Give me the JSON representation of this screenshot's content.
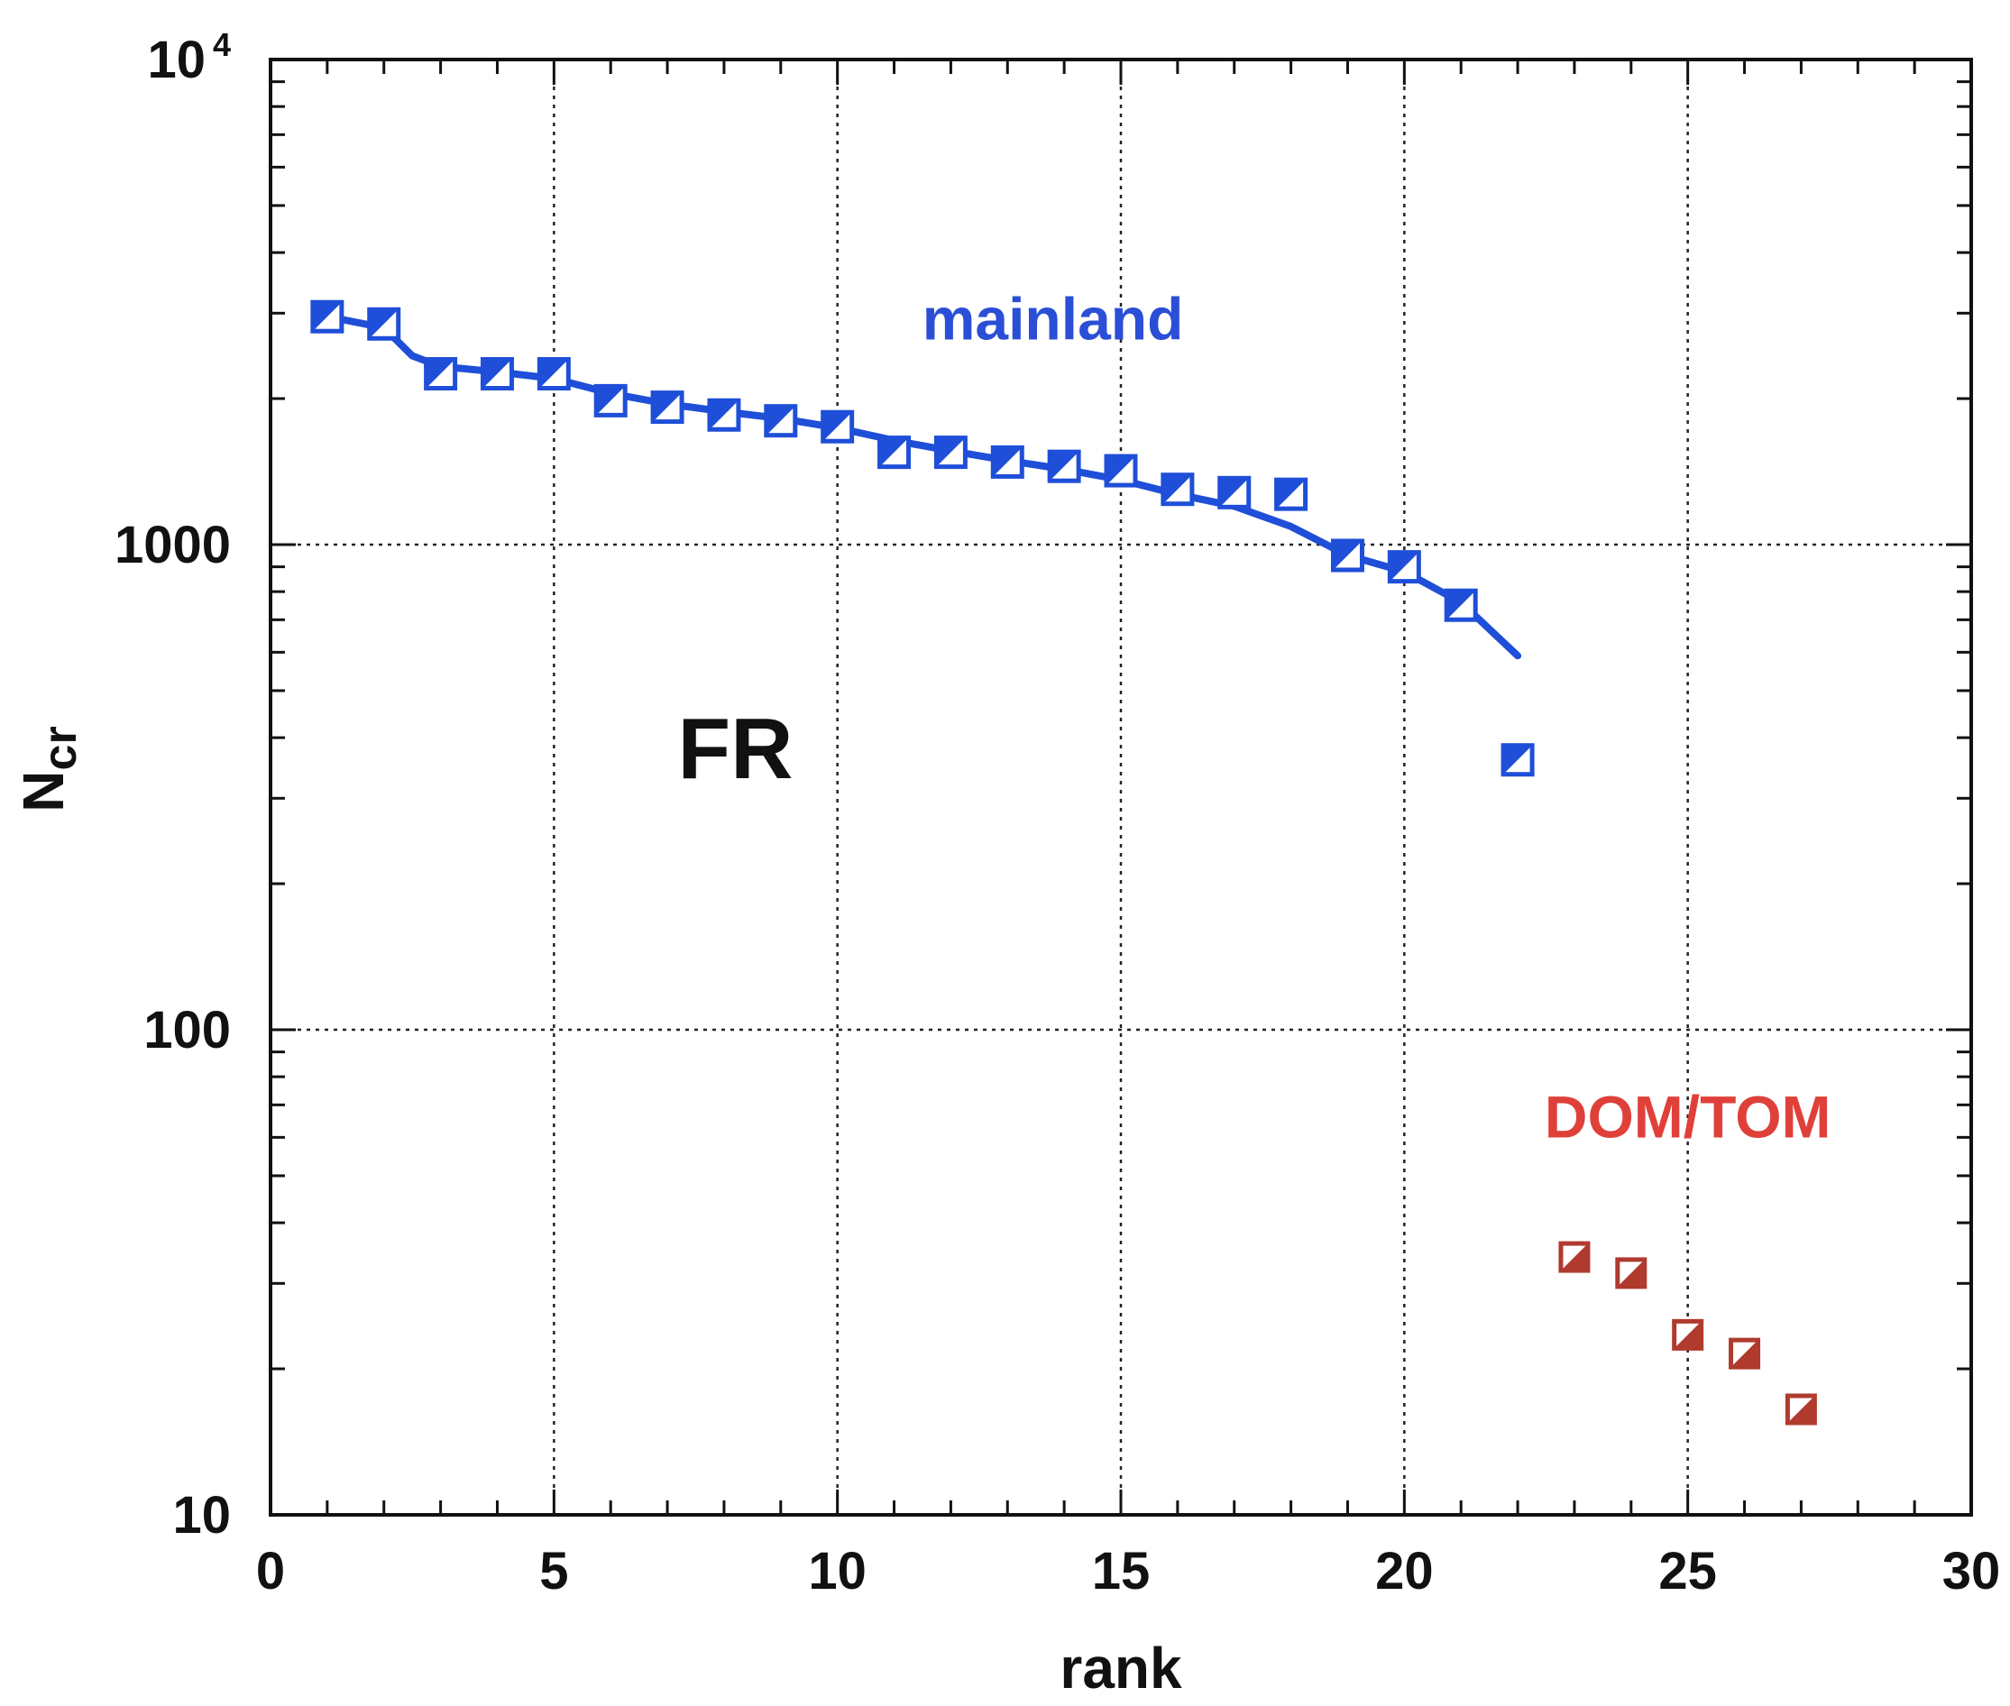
{
  "chart_data": {
    "type": "scatter",
    "title": "",
    "xlabel": "rank",
    "ylabel": "N",
    "ylabel_sub": "cr",
    "xlim": [
      0,
      30
    ],
    "ylim": [
      10,
      10000
    ],
    "y_scale": "log",
    "grid": true,
    "x_ticks": [
      {
        "value": 0,
        "label": "0"
      },
      {
        "value": 5,
        "label": "5"
      },
      {
        "value": 10,
        "label": "10"
      },
      {
        "value": 15,
        "label": "15"
      },
      {
        "value": 20,
        "label": "20"
      },
      {
        "value": 25,
        "label": "25"
      },
      {
        "value": 30,
        "label": "30"
      }
    ],
    "y_ticks": [
      {
        "value": 10,
        "label": "10",
        "sup": ""
      },
      {
        "value": 100,
        "label": "100",
        "sup": ""
      },
      {
        "value": 1000,
        "label": "1000",
        "sup": ""
      },
      {
        "value": 10000,
        "label": "10",
        "sup": "4"
      }
    ],
    "annotations": [
      {
        "text": "FR",
        "x": 8.2,
        "y": 330,
        "color": "#111111",
        "style": "large"
      },
      {
        "text": "mainland",
        "x": 13.8,
        "y": 2650,
        "color": "#2a4fd6",
        "style": "blue"
      },
      {
        "text": "DOM/TOM",
        "x": 25.0,
        "y": 60,
        "color": "#e0403a",
        "style": "red"
      }
    ],
    "series": [
      {
        "name": "mainland",
        "color": "#1f4fd8",
        "marker": "half-filled-square",
        "x": [
          1,
          2,
          3,
          4,
          5,
          6,
          7,
          8,
          9,
          10,
          11,
          12,
          13,
          14,
          15,
          16,
          17,
          18,
          19,
          20,
          21,
          22
        ],
        "y": [
          2950,
          2850,
          2250,
          2250,
          2250,
          1980,
          1920,
          1850,
          1800,
          1750,
          1550,
          1550,
          1480,
          1450,
          1420,
          1300,
          1280,
          1270,
          950,
          900,
          750,
          360
        ]
      },
      {
        "name": "DOM/TOM",
        "color": "#b03a2e",
        "marker": "half-filled-square",
        "x": [
          23,
          24,
          25,
          26,
          27
        ],
        "y": [
          34,
          31.5,
          23.5,
          21.5,
          16.5
        ]
      }
    ],
    "fit_line": {
      "color": "#1f4fd8",
      "x": [
        1,
        2,
        2.5,
        3,
        4,
        5,
        6,
        7,
        8,
        9,
        10,
        11,
        12,
        13,
        14,
        15,
        16,
        17,
        18,
        19,
        20,
        21,
        22
      ],
      "y": [
        2950,
        2800,
        2450,
        2330,
        2270,
        2200,
        2050,
        1950,
        1880,
        1820,
        1740,
        1640,
        1560,
        1490,
        1430,
        1360,
        1270,
        1200,
        1090,
        950,
        880,
        760,
        590
      ]
    }
  }
}
